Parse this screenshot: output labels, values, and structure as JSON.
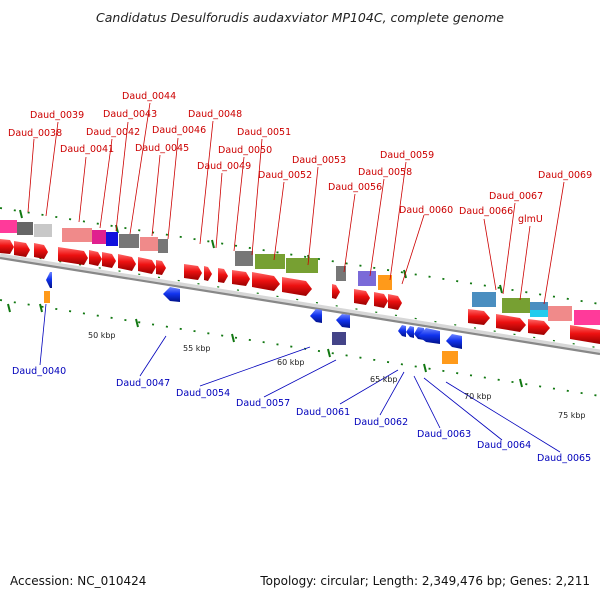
{
  "header": {
    "title": "Candidatus Desulforudis audaxviator MP104C, complete genome"
  },
  "footer": {
    "accession": "Accession: NC_010424",
    "summary": "Topology: circular; Length: 2,349,476 bp; Genes: 2,211"
  },
  "scale": {
    "ticks": [
      "50 kbp",
      "55 kbp",
      "60 kbp",
      "65 kbp",
      "70 kbp",
      "75 kbp"
    ]
  },
  "labels_forward": [
    "Daud_0038",
    "Daud_0039",
    "Daud_0041",
    "Daud_0042",
    "Daud_0043",
    "Daud_0044",
    "Daud_0045",
    "Daud_0046",
    "Daud_0048",
    "Daud_0049",
    "Daud_0050",
    "Daud_0051",
    "Daud_0052",
    "Daud_0053",
    "Daud_0056",
    "Daud_0058",
    "Daud_0059",
    "Daud_0060",
    "Daud_0066",
    "Daud_0067",
    "glmU",
    "Daud_0069"
  ],
  "labels_reverse": [
    "Daud_0040",
    "Daud_0047",
    "Daud_0054",
    "Daud_0057",
    "Daud_0061",
    "Daud_0062",
    "Daud_0063",
    "Daud_0064",
    "Daud_0065"
  ],
  "colors": {
    "forward_gene": "#ee1111",
    "reverse_gene": "#1133ee",
    "label_forward": "#cc0000",
    "label_reverse": "#0000bb",
    "backbone": "#888888",
    "tick": "#117711"
  }
}
